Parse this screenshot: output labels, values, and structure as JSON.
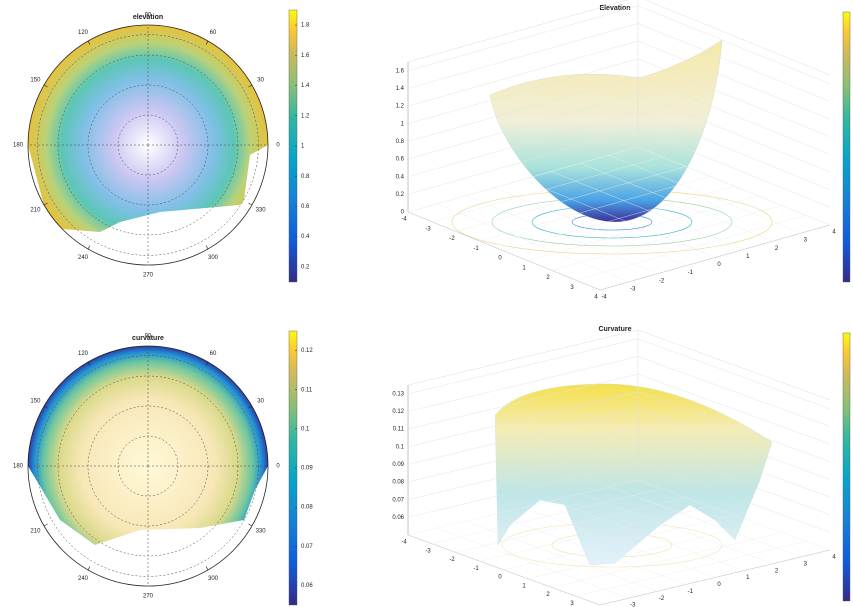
{
  "chart_data": [
    {
      "type": "polar",
      "title": "elevation",
      "thetaticks": [
        0,
        30,
        60,
        90,
        120,
        150,
        180,
        210,
        240,
        270,
        300,
        330
      ],
      "colorbar": {
        "lim": [
          0.1,
          1.9
        ],
        "ticks": [
          0.2,
          0.4,
          0.6,
          0.8,
          1,
          1.2,
          1.4,
          1.6,
          1.8
        ]
      }
    },
    {
      "type": "surface3d",
      "title": "Elevation",
      "zlim": [
        0,
        1.7
      ],
      "zticks": [
        0,
        0.2,
        0.4,
        0.6,
        0.8,
        1,
        1.2,
        1.4,
        1.6
      ],
      "xticks": [
        -4,
        -3,
        -2,
        -1,
        0,
        1,
        2,
        3,
        4
      ],
      "yticks": [
        -4,
        -3,
        -2,
        -1,
        0,
        1,
        2,
        3,
        4
      ]
    },
    {
      "type": "polar",
      "title": "curvature",
      "thetaticks": [
        0,
        30,
        60,
        90,
        120,
        150,
        180,
        210,
        240,
        270,
        300,
        330
      ],
      "colorbar": {
        "lim": [
          0.055,
          0.125
        ],
        "ticks": [
          0.06,
          0.07,
          0.08,
          0.09,
          0.1,
          0.11,
          0.12
        ]
      }
    },
    {
      "type": "surface3d",
      "title": "Curvature",
      "zlim": [
        0.05,
        0.135
      ],
      "zticks": [
        0.06,
        0.07,
        0.08,
        0.09,
        0.1,
        0.11,
        0.12,
        0.13
      ],
      "xticks": [
        -4,
        -3,
        -2,
        -1,
        0,
        1,
        2,
        3,
        4
      ],
      "yticks": [
        -4,
        -3,
        -2,
        -1,
        0,
        1,
        2,
        3,
        4
      ]
    }
  ]
}
